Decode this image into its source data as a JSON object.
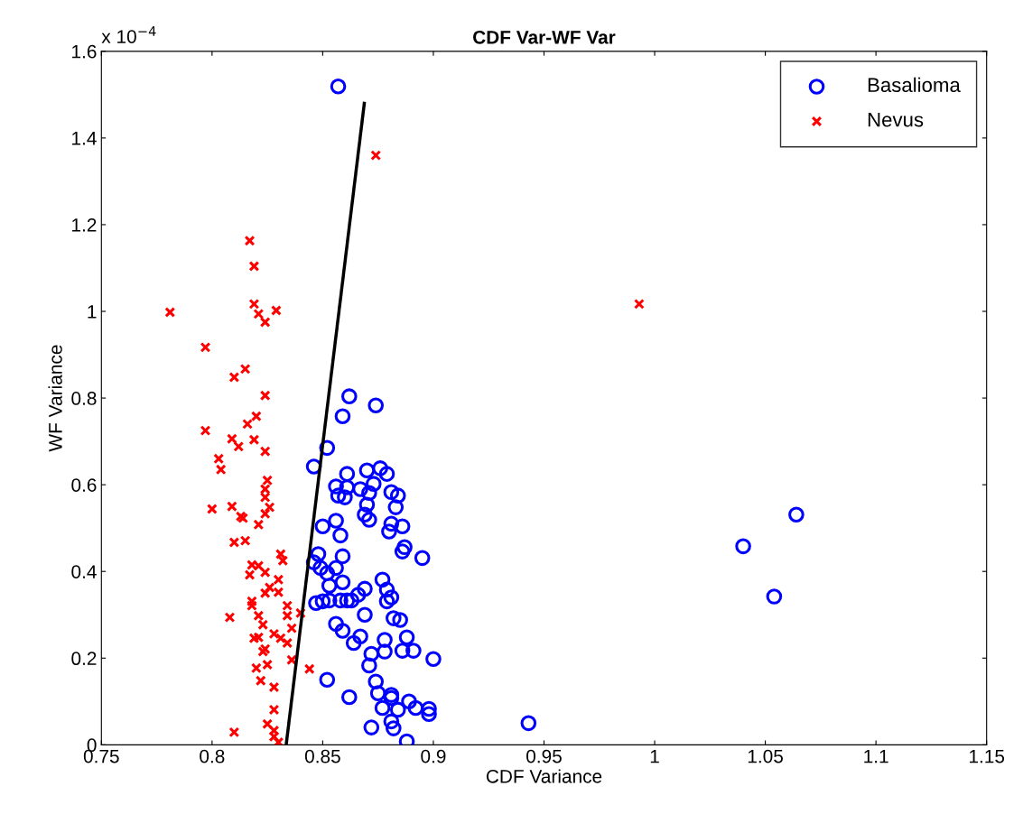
{
  "chart_data": {
    "type": "scatter",
    "title": "CDF Var-WF Var",
    "xlabel": "CDF Variance",
    "ylabel": "WF Variance",
    "annotations": [
      "x 10$^{−4}$"
    ],
    "xlim": [
      0.75,
      1.15
    ],
    "xticks": [
      0.75,
      0.8,
      0.85,
      0.9,
      0.95,
      1,
      1.05,
      1.1,
      1.15
    ],
    "ylim": [
      0,
      1.6
    ],
    "yticks": [
      0,
      0.2,
      0.4,
      0.6,
      0.8,
      1,
      1.2,
      1.4,
      1.6
    ],
    "grid": false,
    "legend": "top right",
    "series": [
      {
        "name": "Basalioma",
        "color": "#0000ff",
        "marker": "circle",
        "x": [
          0.857,
          0.862,
          0.859,
          0.874,
          0.852,
          0.846,
          0.857,
          0.856,
          0.867,
          0.873,
          0.861,
          0.856,
          0.86,
          0.87,
          0.861,
          0.871,
          0.876,
          0.879,
          0.881,
          0.884,
          0.883,
          0.87,
          0.869,
          0.871,
          0.881,
          0.88,
          0.886,
          0.887,
          0.895,
          0.85,
          0.858,
          0.848,
          0.846,
          0.849,
          0.852,
          0.856,
          0.859,
          0.853,
          0.859,
          0.866,
          0.863,
          0.847,
          0.85,
          0.853,
          0.858,
          0.861,
          0.869,
          0.879,
          0.881,
          0.877,
          0.879,
          0.882,
          0.885,
          0.886,
          0.888,
          0.869,
          0.856,
          0.859,
          0.864,
          0.867,
          0.878,
          0.878,
          0.886,
          0.891,
          0.9,
          0.852,
          0.862,
          0.871,
          0.872,
          0.874,
          0.875,
          0.877,
          0.881,
          0.881,
          0.884,
          0.889,
          0.892,
          0.898,
          0.898,
          0.872,
          0.881,
          0.882,
          0.888,
          0.943,
          1.04,
          1.054,
          1.064
        ],
        "values": [
          1.519,
          0.804,
          0.758,
          0.783,
          0.685,
          0.642,
          0.575,
          0.517,
          0.59,
          0.602,
          0.594,
          0.596,
          0.571,
          0.633,
          0.625,
          0.581,
          0.638,
          0.625,
          0.583,
          0.575,
          0.548,
          0.554,
          0.531,
          0.519,
          0.51,
          0.492,
          0.504,
          0.456,
          0.431,
          0.504,
          0.483,
          0.44,
          0.421,
          0.408,
          0.396,
          0.408,
          0.435,
          0.367,
          0.375,
          0.346,
          0.333,
          0.327,
          0.331,
          0.333,
          0.333,
          0.333,
          0.36,
          0.331,
          0.34,
          0.381,
          0.358,
          0.292,
          0.288,
          0.446,
          0.248,
          0.3,
          0.279,
          0.263,
          0.235,
          0.25,
          0.242,
          0.215,
          0.217,
          0.217,
          0.198,
          0.15,
          0.11,
          0.183,
          0.21,
          0.146,
          0.119,
          0.085,
          0.108,
          0.115,
          0.081,
          0.1,
          0.085,
          0.071,
          0.083,
          0.04,
          0.054,
          0.038,
          0.008,
          0.05,
          0.458,
          0.342,
          0.531
        ]
      },
      {
        "name": "Nevus",
        "color": "#ff0000",
        "marker": "cross",
        "x": [
          0.817,
          0.819,
          0.819,
          0.821,
          0.824,
          0.829,
          0.781,
          0.797,
          0.815,
          0.81,
          0.824,
          0.82,
          0.816,
          0.797,
          0.809,
          0.812,
          0.819,
          0.824,
          0.803,
          0.804,
          0.825,
          0.824,
          0.824,
          0.8,
          0.809,
          0.813,
          0.814,
          0.826,
          0.824,
          0.821,
          0.81,
          0.815,
          0.831,
          0.832,
          0.818,
          0.821,
          0.817,
          0.824,
          0.83,
          0.826,
          0.83,
          0.824,
          0.818,
          0.818,
          0.808,
          0.821,
          0.823,
          0.834,
          0.834,
          0.84,
          0.836,
          0.828,
          0.819,
          0.821,
          0.831,
          0.834,
          0.824,
          0.823,
          0.836,
          0.844,
          0.82,
          0.825,
          0.822,
          0.828,
          0.828,
          0.81,
          0.825,
          0.828,
          0.828,
          0.83,
          0.874,
          0.993
        ],
        "values": [
          1.163,
          1.104,
          1.017,
          0.994,
          0.975,
          1.002,
          0.998,
          0.917,
          0.867,
          0.848,
          0.806,
          0.758,
          0.74,
          0.725,
          0.706,
          0.688,
          0.704,
          0.677,
          0.66,
          0.635,
          0.61,
          0.59,
          0.571,
          0.544,
          0.55,
          0.527,
          0.523,
          0.548,
          0.533,
          0.508,
          0.467,
          0.471,
          0.44,
          0.425,
          0.415,
          0.413,
          0.392,
          0.398,
          0.381,
          0.363,
          0.352,
          0.35,
          0.331,
          0.321,
          0.294,
          0.298,
          0.277,
          0.321,
          0.298,
          0.304,
          0.269,
          0.256,
          0.246,
          0.248,
          0.246,
          0.235,
          0.221,
          0.215,
          0.196,
          0.175,
          0.177,
          0.185,
          0.148,
          0.133,
          0.081,
          0.029,
          0.048,
          0.033,
          0.019,
          0.006,
          1.36,
          1.017
        ]
      },
      {
        "type": "line",
        "color": "#000000",
        "line_style": "solid",
        "x": [
          0.8335,
          0.8688
        ],
        "values": [
          0,
          1.48
        ]
      }
    ]
  }
}
